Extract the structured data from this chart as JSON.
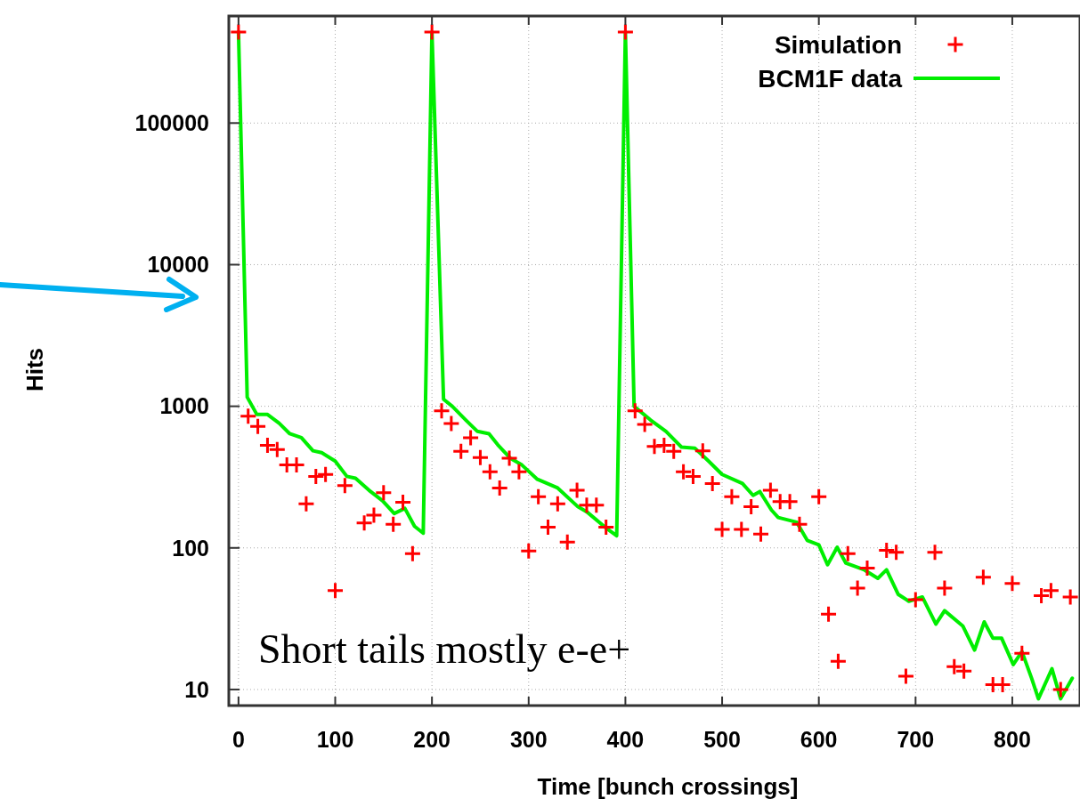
{
  "chart_data": {
    "type": "scatter",
    "xlabel": "Time [bunch crossings]",
    "ylabel": "Hits",
    "log": "y",
    "grid": true,
    "legend": "top right",
    "xlim": [
      -10,
      870
    ],
    "xticks": [
      0,
      100,
      200,
      300,
      400,
      500,
      600,
      700,
      800
    ],
    "ylim": [
      7.7,
      570000
    ],
    "yticks": [
      10,
      100,
      1000,
      10000,
      100000
    ],
    "annotations": [
      "Short tails mostly e-e+"
    ],
    "series": [
      {
        "name": "Simulation",
        "type": "scatter",
        "marker": "cross",
        "color": "#ff0000",
        "x": [
          0,
          10,
          20,
          30,
          40,
          50,
          60,
          70,
          80,
          90,
          100,
          110,
          130,
          140,
          150,
          160,
          170,
          180,
          200,
          210,
          220,
          230,
          240,
          250,
          260,
          270,
          280,
          290,
          300,
          310,
          320,
          330,
          340,
          350,
          360,
          370,
          380,
          400,
          410,
          420,
          430,
          440,
          450,
          460,
          470,
          480,
          490,
          500,
          510,
          520,
          530,
          540,
          550,
          560,
          570,
          580,
          600,
          610,
          620,
          630,
          640,
          650,
          670,
          680,
          690,
          700,
          720,
          730,
          740,
          750,
          770,
          780,
          790,
          800,
          810,
          830,
          840,
          850,
          860
        ],
        "values": [
          440000,
          850,
          720,
          530,
          495,
          385,
          385,
          205,
          320,
          330,
          50,
          275,
          150,
          170,
          245,
          147,
          210,
          91,
          440000,
          930,
          755,
          480,
          600,
          435,
          345,
          265,
          430,
          345,
          95,
          230,
          140,
          205,
          110,
          255,
          200,
          200,
          140,
          440000,
          930,
          745,
          520,
          530,
          480,
          345,
          320,
          485,
          285,
          135,
          230,
          135,
          195,
          125,
          255,
          212,
          212,
          147,
          230,
          34,
          15.8,
          91,
          52,
          72,
          96,
          93,
          12.4,
          43,
          93,
          52,
          14.5,
          13.5,
          62,
          10.8,
          10.8,
          56,
          18,
          46,
          50,
          10,
          45
        ]
      },
      {
        "name": "BCM1F data",
        "type": "line",
        "marker": "none",
        "line_style": "solid",
        "color": "#00ee00",
        "x": [
          0,
          9,
          19,
          30,
          42,
          53,
          65,
          77,
          86,
          100,
          112,
          121,
          135,
          149,
          161,
          172,
          182,
          191,
          200,
          212,
          221,
          235,
          247,
          259,
          268,
          281,
          293,
          309,
          330,
          351,
          360,
          379,
          391,
          400,
          409,
          426,
          442,
          458,
          472,
          486,
          500,
          521,
          532,
          539,
          551,
          558,
          577,
          588,
          600,
          609,
          619,
          628,
          647,
          661,
          670,
          682,
          693,
          707,
          721,
          730,
          749,
          761,
          771,
          780,
          789,
          801,
          810,
          820,
          827,
          841,
          850,
          862
        ],
        "values": [
          440000,
          1160,
          875,
          875,
          760,
          640,
          600,
          485,
          470,
          410,
          320,
          310,
          255,
          215,
          175,
          190,
          142,
          127,
          440000,
          1120,
          1000,
          800,
          665,
          640,
          535,
          430,
          385,
          305,
          265,
          195,
          180,
          140,
          122,
          440000,
          1000,
          800,
          665,
          515,
          505,
          410,
          330,
          285,
          235,
          250,
          185,
          164,
          152,
          113,
          105,
          76,
          101,
          78,
          70,
          61,
          70,
          47,
          42,
          45,
          29,
          36,
          28,
          19,
          30,
          23,
          23,
          15,
          18.5,
          12,
          8.6,
          14,
          8.6,
          12
        ]
      }
    ]
  }
}
